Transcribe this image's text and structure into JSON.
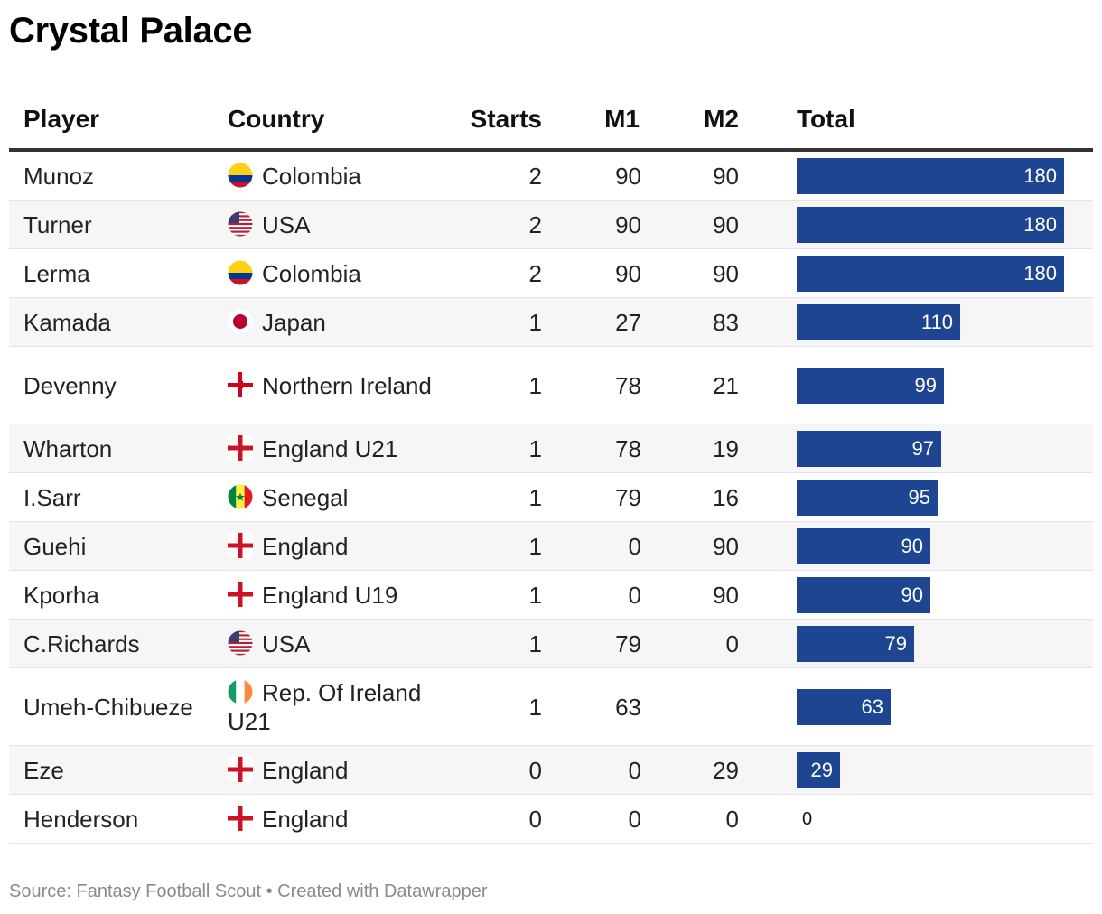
{
  "title": "Crystal Palace",
  "headers": {
    "player": "Player",
    "country": "Country",
    "starts": "Starts",
    "m1": "M1",
    "m2": "M2",
    "total": "Total"
  },
  "bar_color": "#1e4591",
  "footer": "Source: Fantasy Football Scout • Created with Datawrapper",
  "chart_data": {
    "type": "table",
    "title": "Crystal Palace",
    "columns": [
      "Player",
      "Country",
      "Starts",
      "M1",
      "M2",
      "Total"
    ],
    "max_total": 180,
    "rows": [
      {
        "player": "Munoz",
        "country": "Colombia",
        "flag": "colombia-flag-icon",
        "starts": "2",
        "m1": "90",
        "m2": "90",
        "total": 180
      },
      {
        "player": "Turner",
        "country": "USA",
        "flag": "usa-flag-icon",
        "starts": "2",
        "m1": "90",
        "m2": "90",
        "total": 180
      },
      {
        "player": "Lerma",
        "country": "Colombia",
        "flag": "colombia-flag-icon",
        "starts": "2",
        "m1": "90",
        "m2": "90",
        "total": 180
      },
      {
        "player": "Kamada",
        "country": "Japan",
        "flag": "japan-flag-icon",
        "starts": "1",
        "m1": "27",
        "m2": "83",
        "total": 110
      },
      {
        "player": "Devenny",
        "country": "Northern Ireland",
        "flag": "northern-ireland-flag-icon",
        "starts": "1",
        "m1": "78",
        "m2": "21",
        "total": 99
      },
      {
        "player": "Wharton",
        "country": "England U21",
        "flag": "england-flag-icon",
        "starts": "1",
        "m1": "78",
        "m2": "19",
        "total": 97
      },
      {
        "player": "I.Sarr",
        "country": "Senegal",
        "flag": "senegal-flag-icon",
        "starts": "1",
        "m1": "79",
        "m2": "16",
        "total": 95
      },
      {
        "player": "Guehi",
        "country": "England",
        "flag": "england-flag-icon",
        "starts": "1",
        "m1": "0",
        "m2": "90",
        "total": 90
      },
      {
        "player": "Kporha",
        "country": "England U19",
        "flag": "england-flag-icon",
        "starts": "1",
        "m1": "0",
        "m2": "90",
        "total": 90
      },
      {
        "player": "C.Richards",
        "country": "USA",
        "flag": "usa-flag-icon",
        "starts": "1",
        "m1": "79",
        "m2": "0",
        "total": 79
      },
      {
        "player": "Umeh-Chibueze",
        "country": "Rep. Of Ireland U21",
        "flag": "ireland-flag-icon",
        "starts": "1",
        "m1": "63",
        "m2": "",
        "total": 63
      },
      {
        "player": "Eze",
        "country": "England",
        "flag": "england-flag-icon",
        "starts": "0",
        "m1": "0",
        "m2": "29",
        "total": 29
      },
      {
        "player": "Henderson",
        "country": "England",
        "flag": "england-flag-icon",
        "starts": "0",
        "m1": "0",
        "m2": "0",
        "total": 0
      }
    ]
  }
}
